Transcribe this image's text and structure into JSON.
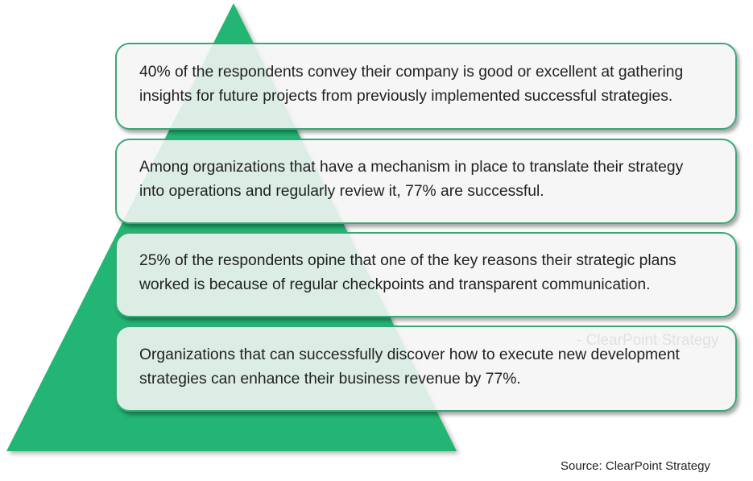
{
  "colors": {
    "pyramid": "#22b573",
    "border": "#3aa876"
  },
  "statements": [
    "40% of the respondents convey their company is good or excellent at gathering insights for future projects from previously implemented successful strategies.",
    "Among organizations that have a mechanism in place to translate their strategy into operations and regularly review it, 77% are successful.",
    "25% of the respondents opine that one of the key reasons their strategic plans worked is because of regular checkpoints and transparent communication.",
    "Organizations that can successfully discover how to execute new development strategies can enhance their business revenue by 77%."
  ],
  "watermark": "- ClearPoint Strategy",
  "source": "Source: ClearPoint Strategy"
}
